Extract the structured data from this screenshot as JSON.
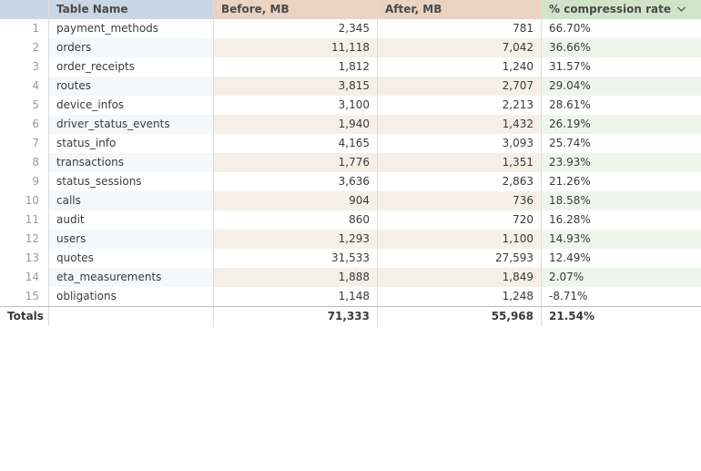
{
  "header": {
    "table_name": "Table Name",
    "before": "Before, MB",
    "after": "After, MB",
    "rate": "% compression rate",
    "sort_icon": "chevron-down-icon"
  },
  "rows": [
    {
      "idx": "1",
      "name": "payment_methods",
      "before": "2,345",
      "after": "781",
      "rate": "66.70%"
    },
    {
      "idx": "2",
      "name": "orders",
      "before": "11,118",
      "after": "7,042",
      "rate": "36.66%"
    },
    {
      "idx": "3",
      "name": "order_receipts",
      "before": "1,812",
      "after": "1,240",
      "rate": "31.57%"
    },
    {
      "idx": "4",
      "name": "routes",
      "before": "3,815",
      "after": "2,707",
      "rate": "29.04%"
    },
    {
      "idx": "5",
      "name": "device_infos",
      "before": "3,100",
      "after": "2,213",
      "rate": "28.61%"
    },
    {
      "idx": "6",
      "name": "driver_status_events",
      "before": "1,940",
      "after": "1,432",
      "rate": "26.19%"
    },
    {
      "idx": "7",
      "name": "status_info",
      "before": "4,165",
      "after": "3,093",
      "rate": "25.74%"
    },
    {
      "idx": "8",
      "name": "transactions",
      "before": "1,776",
      "after": "1,351",
      "rate": "23.93%"
    },
    {
      "idx": "9",
      "name": "status_sessions",
      "before": "3,636",
      "after": "2,863",
      "rate": "21.26%"
    },
    {
      "idx": "10",
      "name": "calls",
      "before": "904",
      "after": "736",
      "rate": "18.58%"
    },
    {
      "idx": "11",
      "name": "audit",
      "before": "860",
      "after": "720",
      "rate": "16.28%"
    },
    {
      "idx": "12",
      "name": "users",
      "before": "1,293",
      "after": "1,100",
      "rate": "14.93%"
    },
    {
      "idx": "13",
      "name": "quotes",
      "before": "31,533",
      "after": "27,593",
      "rate": "12.49%"
    },
    {
      "idx": "14",
      "name": "eta_measurements",
      "before": "1,888",
      "after": "1,849",
      "rate": "2.07%"
    },
    {
      "idx": "15",
      "name": "obligations",
      "before": "1,148",
      "after": "1,248",
      "rate": "-8.71%"
    }
  ],
  "totals": {
    "label": "Totals",
    "before": "71,333",
    "after": "55,968",
    "rate": "21.54%"
  }
}
